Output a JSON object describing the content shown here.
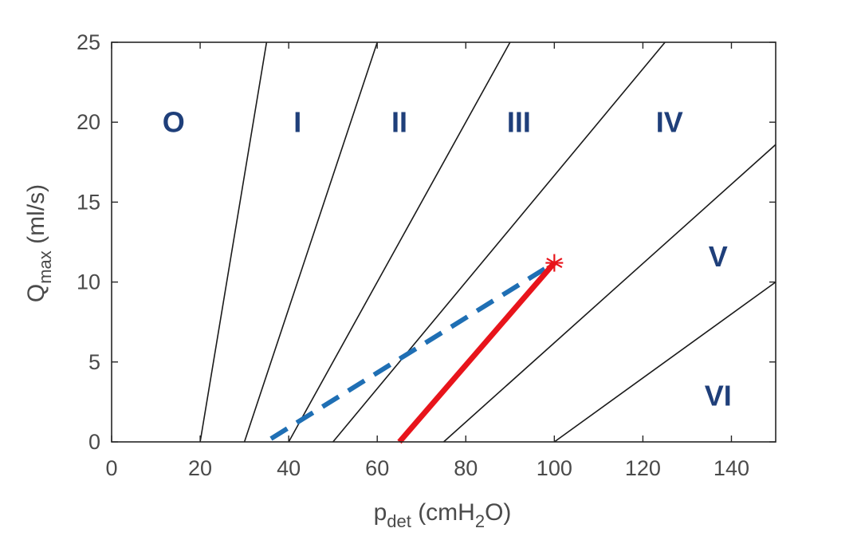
{
  "chart_data": {
    "type": "line",
    "title": "",
    "xlabel": {
      "main": "p",
      "sub": "det",
      "rest1": " (cmH",
      "sub2": "2",
      "rest2": "O)"
    },
    "ylabel": {
      "main": "Q",
      "sub": "max",
      "rest": " (ml/s)"
    },
    "xlim": [
      0,
      150
    ],
    "ylim": [
      0,
      25
    ],
    "xticks": [
      0,
      20,
      40,
      60,
      80,
      100,
      120,
      140
    ],
    "yticks": [
      0,
      5,
      10,
      15,
      20,
      25
    ],
    "xtick_labels": [
      "0",
      "20",
      "40",
      "60",
      "80",
      "100",
      "120",
      "140"
    ],
    "ytick_labels": [
      "0",
      "5",
      "10",
      "15",
      "20",
      "25"
    ],
    "grid": false,
    "boundaries": [
      {
        "name": "O-I boundary",
        "points": [
          [
            20,
            0
          ],
          [
            35,
            25
          ]
        ]
      },
      {
        "name": "I-II boundary",
        "points": [
          [
            30,
            0
          ],
          [
            60,
            25
          ]
        ]
      },
      {
        "name": "II-III boundary",
        "points": [
          [
            40,
            0
          ],
          [
            90,
            25
          ]
        ]
      },
      {
        "name": "III-IV boundary",
        "points": [
          [
            50,
            0
          ],
          [
            125,
            25
          ]
        ]
      },
      {
        "name": "IV-V boundary",
        "points": [
          [
            75,
            0
          ],
          [
            150,
            18.6
          ]
        ]
      },
      {
        "name": "V-VI boundary",
        "points": [
          [
            100,
            0
          ],
          [
            150,
            10
          ]
        ]
      }
    ],
    "zones": [
      {
        "label": "O",
        "x": 14,
        "y": 20
      },
      {
        "label": "I",
        "x": 42,
        "y": 20
      },
      {
        "label": "II",
        "x": 65,
        "y": 20
      },
      {
        "label": "III",
        "x": 92,
        "y": 20
      },
      {
        "label": "IV",
        "x": 126,
        "y": 20
      },
      {
        "label": "V",
        "x": 137,
        "y": 11.6
      },
      {
        "label": "VI",
        "x": 137,
        "y": 2.9
      }
    ],
    "series": [
      {
        "name": "dashed",
        "color": "#1f6fb4",
        "style": "dashed",
        "points": [
          [
            36,
            0.2
          ],
          [
            100,
            11.2
          ]
        ]
      },
      {
        "name": "solid",
        "color": "#e8141b",
        "style": "solid",
        "points": [
          [
            65,
            0
          ],
          [
            100,
            11.2
          ]
        ]
      }
    ],
    "marker": {
      "symbol": "*",
      "color": "#e8141b",
      "x": 100,
      "y": 11.2
    }
  }
}
